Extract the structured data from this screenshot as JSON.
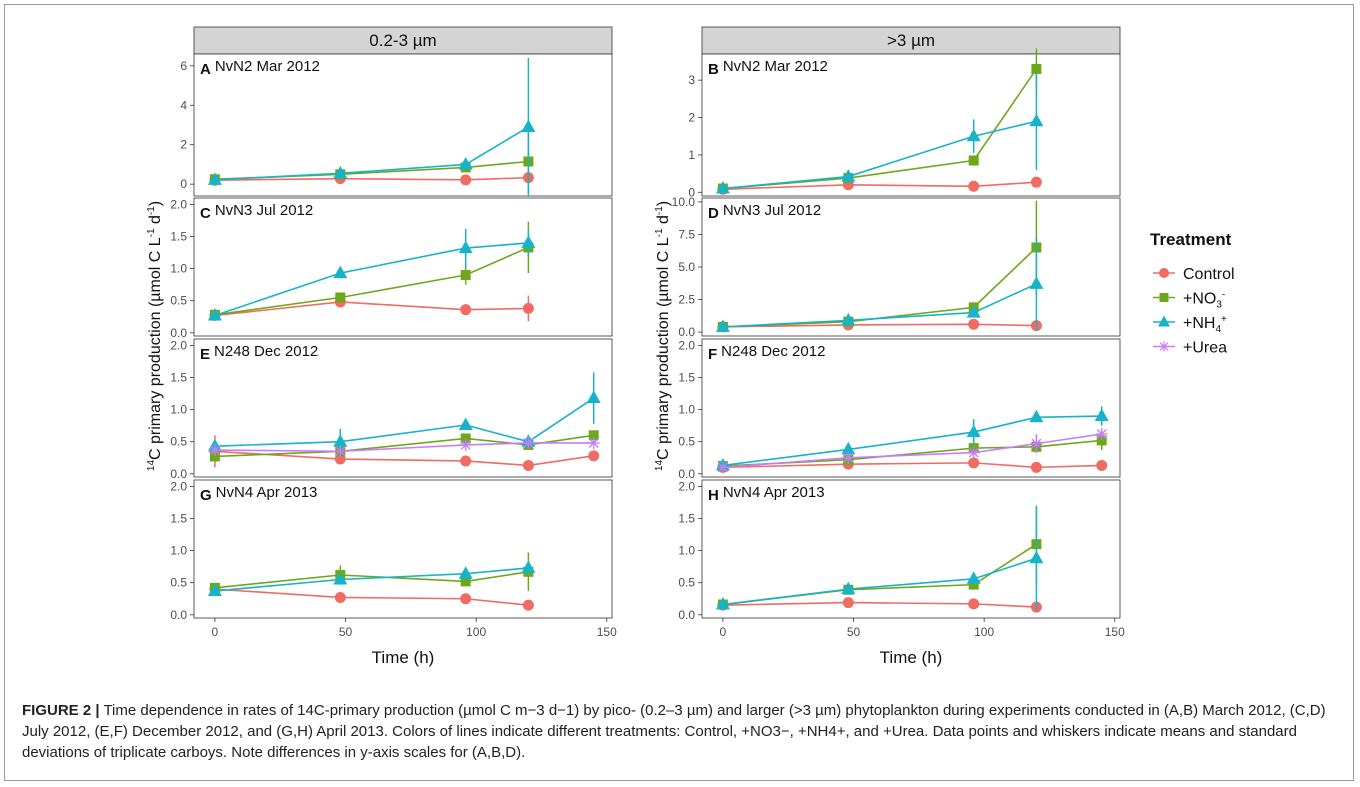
{
  "chart_data": {
    "type": "line",
    "xlabel": "Time (h)",
    "ylabel_prefix": "14",
    "ylabel": "C primary production (µmol C L",
    "ylabel_unit_sup1": "-1",
    "ylabel_mid": " d",
    "ylabel_unit_sup2": "-1",
    "ylabel_end": ")",
    "column_headers": [
      "0.2-3 µm",
      ">3 µm"
    ],
    "x_ticks": [
      0,
      50,
      100,
      150
    ],
    "xlim": [
      -8,
      152
    ],
    "legend": {
      "title": "Treatment",
      "placement": "right",
      "items": [
        {
          "label": "Control",
          "color": "#f06b63",
          "marker": "circle"
        },
        {
          "label": "+NO",
          "sub": "3",
          "sup": "-",
          "color": "#6fa71a",
          "marker": "square"
        },
        {
          "label": "+NH",
          "sub": "4",
          "sup": "+",
          "color": "#17b3c8",
          "marker": "triangle"
        },
        {
          "label": "+Urea",
          "color": "#c77cff",
          "marker": "asterisk"
        }
      ]
    },
    "panels": [
      {
        "id": "A",
        "label": "A",
        "title": "NvN2 Mar 2012",
        "col": 0,
        "row": 0,
        "ylim": [
          -0.6,
          6.6
        ],
        "yticks": [
          "0",
          "2",
          "4",
          "6"
        ],
        "ytick_values": [
          0,
          2,
          4,
          6
        ],
        "series": [
          {
            "key": "Control",
            "x": [
              0,
              48,
              96,
              120
            ],
            "y": [
              0.2,
              0.28,
              0.22,
              0.33
            ],
            "err": [
              0,
              0,
              0,
              0
            ]
          },
          {
            "key": "+NO3",
            "x": [
              0,
              48,
              96,
              120
            ],
            "y": [
              0.25,
              0.5,
              0.85,
              1.15
            ],
            "err": [
              0,
              0,
              0,
              1.6
            ]
          },
          {
            "key": "+NH4",
            "x": [
              0,
              48,
              96,
              120
            ],
            "y": [
              0.22,
              0.55,
              1.0,
              2.9
            ],
            "err": [
              0,
              0,
              0,
              3.5
            ]
          }
        ]
      },
      {
        "id": "B",
        "label": "B",
        "title": "NvN2 Mar 2012",
        "col": 1,
        "row": 0,
        "ylim": [
          -0.1,
          3.7
        ],
        "yticks": [
          "0",
          "1",
          "2",
          "3"
        ],
        "ytick_values": [
          0,
          1,
          2,
          3
        ],
        "series": [
          {
            "key": "Control",
            "x": [
              0,
              48,
              96,
              120
            ],
            "y": [
              0.08,
              0.2,
              0.16,
              0.27
            ],
            "err": [
              0,
              0,
              0,
              0
            ]
          },
          {
            "key": "+NO3",
            "x": [
              0,
              48,
              96,
              120
            ],
            "y": [
              0.1,
              0.38,
              0.85,
              3.3
            ],
            "err": [
              0,
              0,
              0.1,
              0.55
            ]
          },
          {
            "key": "+NH4",
            "x": [
              0,
              48,
              96,
              120
            ],
            "y": [
              0.1,
              0.42,
              1.5,
              1.9
            ],
            "err": [
              0,
              0,
              0.45,
              1.3
            ]
          }
        ]
      },
      {
        "id": "C",
        "label": "C",
        "title": "NvN3 Jul 2012",
        "col": 0,
        "row": 1,
        "ylim": [
          -0.05,
          2.1
        ],
        "yticks": [
          "0.0",
          "0.5",
          "1.0",
          "1.5",
          "2.0"
        ],
        "ytick_values": [
          0,
          0.5,
          1,
          1.5,
          2
        ],
        "series": [
          {
            "key": "Control",
            "x": [
              0,
              48,
              96,
              120
            ],
            "y": [
              0.27,
              0.48,
              0.36,
              0.38
            ],
            "err": [
              0,
              0,
              0,
              0.2
            ]
          },
          {
            "key": "+NO3",
            "x": [
              0,
              48,
              96,
              120
            ],
            "y": [
              0.28,
              0.55,
              0.9,
              1.33
            ],
            "err": [
              0,
              0,
              0.15,
              0.4
            ]
          },
          {
            "key": "+NH4",
            "x": [
              0,
              48,
              96,
              120
            ],
            "y": [
              0.27,
              0.93,
              1.32,
              1.4
            ],
            "err": [
              0,
              0,
              0.3,
              0.2
            ]
          }
        ]
      },
      {
        "id": "D",
        "label": "D",
        "title": "NvN3 Jul 2012",
        "col": 1,
        "row": 1,
        "ylim": [
          -0.3,
          10.3
        ],
        "yticks": [
          "0.0",
          "2.5",
          "5.0",
          "7.5",
          "10.0"
        ],
        "ytick_values": [
          0,
          2.5,
          5,
          7.5,
          10
        ],
        "series": [
          {
            "key": "Control",
            "x": [
              0,
              48,
              96,
              120
            ],
            "y": [
              0.4,
              0.55,
              0.6,
              0.5
            ],
            "err": [
              0,
              0,
              0,
              0
            ]
          },
          {
            "key": "+NO3",
            "x": [
              0,
              48,
              96,
              120
            ],
            "y": [
              0.4,
              0.8,
              1.9,
              6.5
            ],
            "err": [
              0,
              0,
              0,
              3.6
            ]
          },
          {
            "key": "+NH4",
            "x": [
              0,
              48,
              96,
              120
            ],
            "y": [
              0.4,
              0.9,
              1.5,
              3.7
            ],
            "err": [
              0,
              0,
              0,
              3.6
            ]
          }
        ]
      },
      {
        "id": "E",
        "label": "E",
        "title": "N248 Dec 2012",
        "col": 0,
        "row": 2,
        "ylim": [
          -0.05,
          2.1
        ],
        "yticks": [
          "0.0",
          "0.5",
          "1.0",
          "1.5",
          "2.0"
        ],
        "ytick_values": [
          0,
          0.5,
          1,
          1.5,
          2
        ],
        "series": [
          {
            "key": "Control",
            "x": [
              0,
              48,
              96,
              120,
              145
            ],
            "y": [
              0.35,
              0.23,
              0.2,
              0.13,
              0.28
            ],
            "err": [
              0.25,
              0,
              0,
              0,
              0
            ]
          },
          {
            "key": "+NO3",
            "x": [
              0,
              48,
              96,
              120,
              145
            ],
            "y": [
              0.27,
              0.35,
              0.55,
              0.45,
              0.6
            ],
            "err": [
              0,
              0,
              0,
              0,
              0
            ]
          },
          {
            "key": "+NH4",
            "x": [
              0,
              48,
              96,
              120,
              145
            ],
            "y": [
              0.43,
              0.5,
              0.76,
              0.5,
              1.18
            ],
            "err": [
              0,
              0.2,
              0,
              0,
              0.4
            ]
          },
          {
            "key": "+Urea",
            "x": [
              0,
              48,
              96,
              120,
              145
            ],
            "y": [
              0.37,
              0.35,
              0.45,
              0.48,
              0.48
            ],
            "err": [
              0,
              0,
              0,
              0,
              0
            ]
          }
        ]
      },
      {
        "id": "F",
        "label": "F",
        "title": "N248 Dec 2012",
        "col": 1,
        "row": 2,
        "ylim": [
          -0.05,
          2.1
        ],
        "yticks": [
          "0.0",
          "0.5",
          "1.0",
          "1.5",
          "2.0"
        ],
        "ytick_values": [
          0,
          0.5,
          1,
          1.5,
          2
        ],
        "series": [
          {
            "key": "Control",
            "x": [
              0,
              48,
              96,
              120,
              145
            ],
            "y": [
              0.1,
              0.15,
              0.17,
              0.1,
              0.13
            ],
            "err": [
              0,
              0,
              0,
              0,
              0
            ]
          },
          {
            "key": "+NO3",
            "x": [
              0,
              48,
              96,
              120,
              145
            ],
            "y": [
              0.12,
              0.22,
              0.4,
              0.42,
              0.52
            ],
            "err": [
              0,
              0,
              0,
              0,
              0.15
            ]
          },
          {
            "key": "+NH4",
            "x": [
              0,
              48,
              96,
              120,
              145
            ],
            "y": [
              0.13,
              0.38,
              0.65,
              0.88,
              0.9
            ],
            "err": [
              0,
              0,
              0.2,
              0,
              0.15
            ]
          },
          {
            "key": "+Urea",
            "x": [
              0,
              48,
              96,
              120,
              145
            ],
            "y": [
              0.1,
              0.25,
              0.33,
              0.47,
              0.62
            ],
            "err": [
              0,
              0,
              0,
              0.15,
              0
            ]
          }
        ]
      },
      {
        "id": "G",
        "label": "G",
        "title": "NvN4 Apr 2013",
        "col": 0,
        "row": 3,
        "ylim": [
          -0.05,
          2.1
        ],
        "yticks": [
          "0.0",
          "0.5",
          "1.0",
          "1.5",
          "2.0"
        ],
        "ytick_values": [
          0,
          0.5,
          1,
          1.5,
          2
        ],
        "series": [
          {
            "key": "Control",
            "x": [
              0,
              48,
              96,
              120
            ],
            "y": [
              0.4,
              0.27,
              0.25,
              0.15
            ],
            "err": [
              0,
              0,
              0,
              0
            ]
          },
          {
            "key": "+NO3",
            "x": [
              0,
              48,
              96,
              120
            ],
            "y": [
              0.42,
              0.62,
              0.52,
              0.67
            ],
            "err": [
              0,
              0.15,
              0,
              0.3
            ]
          },
          {
            "key": "+NH4",
            "x": [
              0,
              48,
              96,
              120
            ],
            "y": [
              0.37,
              0.55,
              0.64,
              0.73
            ],
            "err": [
              0,
              0,
              0,
              0
            ]
          }
        ]
      },
      {
        "id": "H",
        "label": "H",
        "title": "NvN4 Apr 2013",
        "col": 1,
        "row": 3,
        "ylim": [
          -0.05,
          2.1
        ],
        "yticks": [
          "0.0",
          "0.5",
          "1.0",
          "1.5",
          "2.0"
        ],
        "ytick_values": [
          0,
          0.5,
          1,
          1.5,
          2
        ],
        "series": [
          {
            "key": "Control",
            "x": [
              0,
              48,
              96,
              120
            ],
            "y": [
              0.15,
              0.19,
              0.17,
              0.12
            ],
            "err": [
              0,
              0,
              0,
              0
            ]
          },
          {
            "key": "+NO3",
            "x": [
              0,
              48,
              96,
              120
            ],
            "y": [
              0.16,
              0.39,
              0.47,
              1.1
            ],
            "err": [
              0,
              0,
              0,
              0.6
            ]
          },
          {
            "key": "+NH4",
            "x": [
              0,
              48,
              96,
              120
            ],
            "y": [
              0.16,
              0.4,
              0.56,
              0.88
            ],
            "err": [
              0,
              0,
              0,
              0.8
            ]
          }
        ]
      }
    ]
  },
  "caption": {
    "figure_label": "FIGURE 2 |",
    "text": "Time dependence in rates of 14C-primary production (µmol C m−3 d−1) by pico- (0.2–3 µm) and larger (>3 µm) phytoplankton during experiments conducted in (A,B) March 2012, (C,D) July 2012, (E,F) December 2012, and (G,H) April 2013. Colors of lines indicate different treatments: Control, +NO3−, +NH4+, and +Urea. Data points and whiskers indicate means and standard deviations of triplicate carboys. Note differences in y-axis scales for (A,B,D)."
  }
}
